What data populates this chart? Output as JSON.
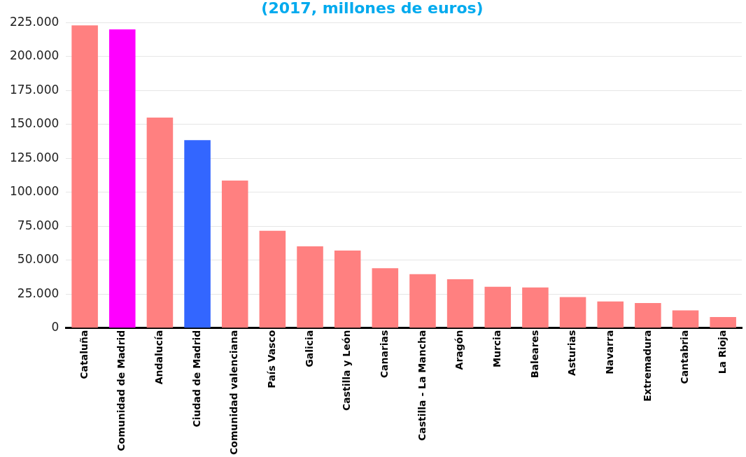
{
  "chart_data": {
    "type": "bar",
    "subtitle": "(2017, millones de euros)",
    "categories": [
      "Cataluña",
      "Comunidad de Madrid",
      "Andalucía",
      "Ciudad de Madrid",
      "Comunidad valenciana",
      "País Vasco",
      "Galicia",
      "Castilla y León",
      "Canarias",
      "Castilla - La Mancha",
      "Aragón",
      "Murcia",
      "Baleares",
      "Asturias",
      "Navarra",
      "Extremadura",
      "Cantabria",
      "La Rioja"
    ],
    "values": [
      223000,
      220000,
      155000,
      138400,
      108600,
      71600,
      60200,
      57000,
      44100,
      39700,
      35900,
      30400,
      29800,
      22800,
      19600,
      18400,
      12900,
      8000
    ],
    "colors": [
      "#ff8080",
      "#ff00ff",
      "#ff8080",
      "#3366ff",
      "#ff8080",
      "#ff8080",
      "#ff8080",
      "#ff8080",
      "#ff8080",
      "#ff8080",
      "#ff8080",
      "#ff8080",
      "#ff8080",
      "#ff8080",
      "#ff8080",
      "#ff8080",
      "#ff8080",
      "#ff8080"
    ],
    "ylim": [
      0,
      225000
    ],
    "yticks": [
      0,
      {
        "value": 25000,
        "label": "25.000"
      },
      {
        "value": 50000,
        "label": "50.000"
      },
      {
        "value": 75000,
        "label": "75.000"
      },
      {
        "value": 100000,
        "label": "100.000"
      },
      {
        "value": 125000,
        "label": "125.000"
      },
      {
        "value": 150000,
        "label": "150.000"
      },
      {
        "value": 175000,
        "label": "175.000"
      },
      {
        "value": 200000,
        "label": "200.000"
      },
      {
        "value": 225000,
        "label": "225.000"
      }
    ],
    "grid": "y",
    "legend": false
  }
}
